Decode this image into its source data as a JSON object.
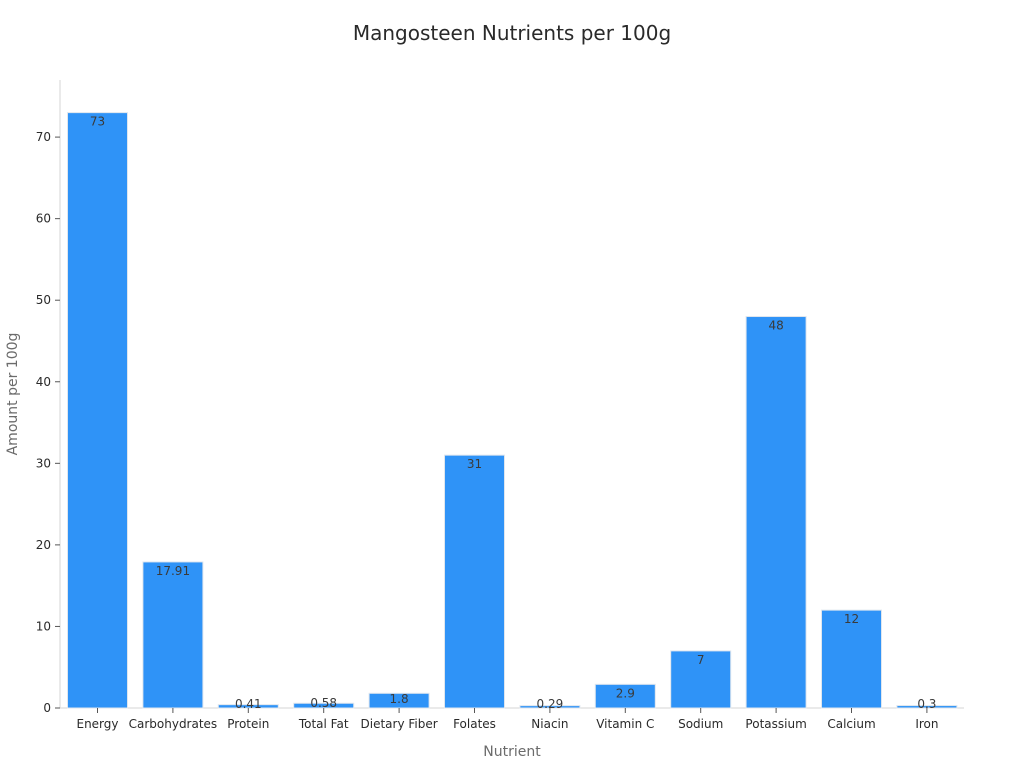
{
  "chart_data": {
    "type": "bar",
    "title": "Mangosteen Nutrients per 100g",
    "xlabel": "Nutrient",
    "ylabel": "Amount per 100g",
    "categories": [
      "Energy",
      "Carbohydrates",
      "Protein",
      "Total Fat",
      "Dietary Fiber",
      "Folates",
      "Niacin",
      "Vitamin C",
      "Sodium",
      "Potassium",
      "Calcium",
      "Iron"
    ],
    "values": [
      73,
      17.91,
      0.41,
      0.58,
      1.8,
      31,
      0.29,
      2.9,
      7,
      48,
      12,
      0.3
    ],
    "data_labels": [
      "73",
      "17.91",
      "0.41",
      "0.58",
      "1.8",
      "31",
      "0.29",
      "2.9",
      "7",
      "48",
      "12",
      "0.3"
    ],
    "ylim": [
      0,
      77
    ],
    "yticks": [
      0,
      10,
      20,
      30,
      40,
      50,
      60,
      70
    ],
    "grid": false,
    "bar_color": "#2f93f7",
    "bar_edge_color": "#dfe6ee"
  }
}
